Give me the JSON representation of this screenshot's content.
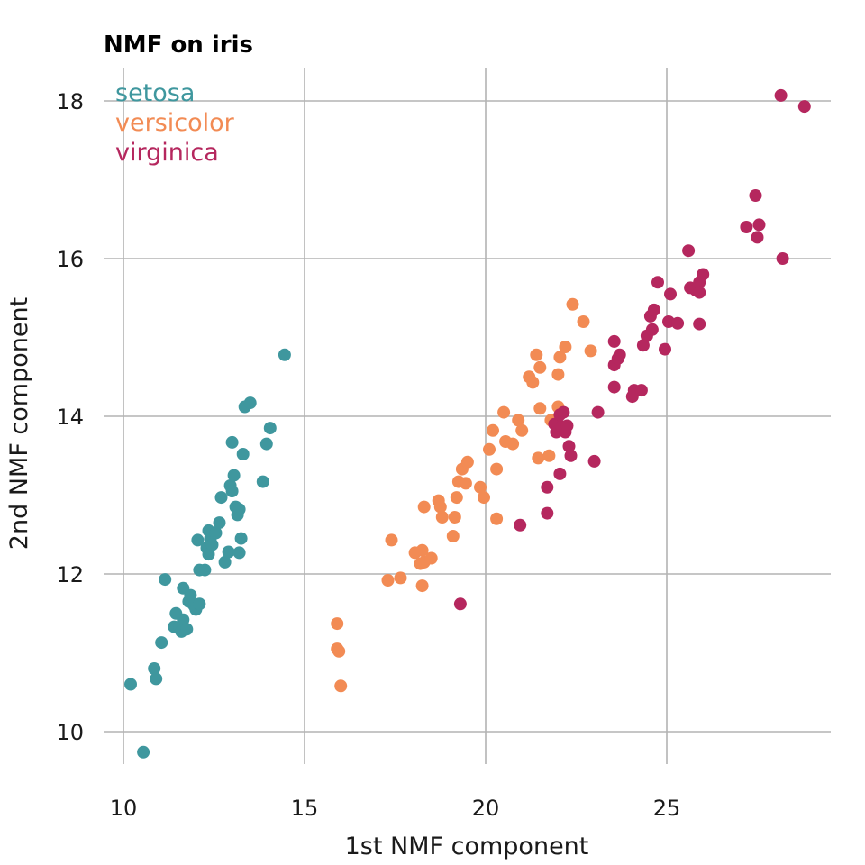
{
  "chart_data": {
    "type": "scatter",
    "title": "NMF on iris",
    "xlabel": "1st NMF component",
    "ylabel": "2nd NMF component",
    "xlim": [
      9.5,
      29.5
    ],
    "ylim": [
      9.4,
      18.4
    ],
    "xticks": [
      10,
      15,
      20,
      25
    ],
    "yticks": [
      10,
      12,
      14,
      16,
      18
    ],
    "grid": true,
    "legend_position": "top-left",
    "series": [
      {
        "name": "setosa",
        "color": "#3f979e",
        "points": [
          [
            10.2,
            10.6
          ],
          [
            10.55,
            9.74
          ],
          [
            10.85,
            10.8
          ],
          [
            10.9,
            10.67
          ],
          [
            11.05,
            11.13
          ],
          [
            11.15,
            11.93
          ],
          [
            11.4,
            11.33
          ],
          [
            11.45,
            11.5
          ],
          [
            11.55,
            11.33
          ],
          [
            11.6,
            11.27
          ],
          [
            11.65,
            11.42
          ],
          [
            11.75,
            11.3
          ],
          [
            11.65,
            11.82
          ],
          [
            11.8,
            11.65
          ],
          [
            11.85,
            11.73
          ],
          [
            11.95,
            11.6
          ],
          [
            12.0,
            11.55
          ],
          [
            12.1,
            11.62
          ],
          [
            12.05,
            12.43
          ],
          [
            12.1,
            12.05
          ],
          [
            12.25,
            12.05
          ],
          [
            12.3,
            12.33
          ],
          [
            12.35,
            12.25
          ],
          [
            12.4,
            12.45
          ],
          [
            12.35,
            12.55
          ],
          [
            12.45,
            12.37
          ],
          [
            12.55,
            12.52
          ],
          [
            12.65,
            12.65
          ],
          [
            12.7,
            12.97
          ],
          [
            12.8,
            12.15
          ],
          [
            12.9,
            12.28
          ],
          [
            12.95,
            13.12
          ],
          [
            13.0,
            13.05
          ],
          [
            13.0,
            13.67
          ],
          [
            13.05,
            13.25
          ],
          [
            13.1,
            12.85
          ],
          [
            13.15,
            12.75
          ],
          [
            13.2,
            12.27
          ],
          [
            13.2,
            12.82
          ],
          [
            13.25,
            12.45
          ],
          [
            13.3,
            13.52
          ],
          [
            13.35,
            14.12
          ],
          [
            13.5,
            14.17
          ],
          [
            13.85,
            13.17
          ],
          [
            13.95,
            13.65
          ],
          [
            14.05,
            13.85
          ],
          [
            14.45,
            14.78
          ]
        ]
      },
      {
        "name": "versicolor",
        "color": "#f28b54",
        "points": [
          [
            15.9,
            11.37
          ],
          [
            15.9,
            11.05
          ],
          [
            15.95,
            11.02
          ],
          [
            16.0,
            10.58
          ],
          [
            17.3,
            11.92
          ],
          [
            17.4,
            12.43
          ],
          [
            17.65,
            11.95
          ],
          [
            18.05,
            12.27
          ],
          [
            18.2,
            12.13
          ],
          [
            18.25,
            12.3
          ],
          [
            18.25,
            11.85
          ],
          [
            18.3,
            12.85
          ],
          [
            18.3,
            12.15
          ],
          [
            18.5,
            12.2
          ],
          [
            18.7,
            12.93
          ],
          [
            18.75,
            12.85
          ],
          [
            18.8,
            12.72
          ],
          [
            19.1,
            12.48
          ],
          [
            19.15,
            12.72
          ],
          [
            19.2,
            12.97
          ],
          [
            19.25,
            13.17
          ],
          [
            19.35,
            13.33
          ],
          [
            19.45,
            13.15
          ],
          [
            19.5,
            13.42
          ],
          [
            19.85,
            13.1
          ],
          [
            19.95,
            12.97
          ],
          [
            20.1,
            13.58
          ],
          [
            20.2,
            13.82
          ],
          [
            20.3,
            13.33
          ],
          [
            20.3,
            12.7
          ],
          [
            20.5,
            14.05
          ],
          [
            20.55,
            13.68
          ],
          [
            20.75,
            13.65
          ],
          [
            20.9,
            13.95
          ],
          [
            21.0,
            13.82
          ],
          [
            21.2,
            14.5
          ],
          [
            21.3,
            14.43
          ],
          [
            21.4,
            14.78
          ],
          [
            21.45,
            13.47
          ],
          [
            21.5,
            14.1
          ],
          [
            21.5,
            14.62
          ],
          [
            21.75,
            13.5
          ],
          [
            21.8,
            13.95
          ],
          [
            22.0,
            14.12
          ],
          [
            22.0,
            14.53
          ],
          [
            22.05,
            14.75
          ],
          [
            22.2,
            14.88
          ],
          [
            22.4,
            15.42
          ],
          [
            22.7,
            15.2
          ],
          [
            22.9,
            14.83
          ]
        ]
      },
      {
        "name": "virginica",
        "color": "#b5275e",
        "points": [
          [
            19.3,
            11.62
          ],
          [
            20.95,
            12.62
          ],
          [
            21.7,
            12.77
          ],
          [
            21.7,
            13.1
          ],
          [
            21.9,
            13.9
          ],
          [
            21.95,
            13.8
          ],
          [
            22.05,
            14.02
          ],
          [
            22.05,
            13.27
          ],
          [
            22.1,
            13.87
          ],
          [
            22.15,
            14.05
          ],
          [
            22.2,
            13.8
          ],
          [
            22.25,
            13.88
          ],
          [
            22.3,
            13.62
          ],
          [
            22.35,
            13.5
          ],
          [
            23.0,
            13.43
          ],
          [
            23.1,
            14.05
          ],
          [
            23.55,
            14.95
          ],
          [
            23.55,
            14.65
          ],
          [
            23.55,
            14.37
          ],
          [
            23.65,
            14.73
          ],
          [
            23.7,
            14.78
          ],
          [
            24.05,
            14.25
          ],
          [
            24.1,
            14.33
          ],
          [
            24.3,
            14.33
          ],
          [
            24.35,
            14.9
          ],
          [
            24.45,
            15.02
          ],
          [
            24.55,
            15.27
          ],
          [
            24.6,
            15.1
          ],
          [
            24.65,
            15.35
          ],
          [
            24.75,
            15.7
          ],
          [
            24.95,
            14.85
          ],
          [
            25.05,
            15.2
          ],
          [
            25.1,
            15.55
          ],
          [
            25.3,
            15.18
          ],
          [
            25.6,
            16.1
          ],
          [
            25.65,
            15.63
          ],
          [
            25.8,
            15.6
          ],
          [
            25.9,
            15.7
          ],
          [
            25.9,
            15.57
          ],
          [
            25.9,
            15.17
          ],
          [
            26.0,
            15.8
          ],
          [
            27.2,
            16.4
          ],
          [
            27.45,
            16.8
          ],
          [
            27.5,
            16.27
          ],
          [
            27.55,
            16.43
          ],
          [
            28.15,
            18.07
          ],
          [
            28.2,
            16.0
          ],
          [
            28.8,
            17.93
          ]
        ]
      }
    ]
  }
}
